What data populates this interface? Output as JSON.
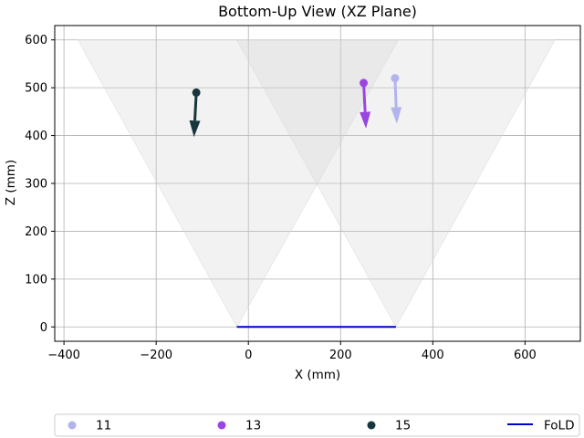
{
  "chart_data": {
    "type": "scatter",
    "title": "Bottom-Up View (XZ Plane)",
    "xlabel": "X (mm)",
    "ylabel": "Z (mm)",
    "xlim": [
      -420,
      720
    ],
    "ylim": [
      -30,
      630
    ],
    "x_ticks": [
      -400,
      -200,
      0,
      200,
      400,
      600
    ],
    "y_ticks": [
      0,
      100,
      200,
      300,
      400,
      500,
      600
    ],
    "grid": true,
    "legend_position": "bottom",
    "fov_cones": [
      {
        "apex": [
          -25,
          0
        ],
        "top_left": [
          -370,
          600
        ],
        "top_right": [
          325,
          600
        ],
        "color": "#d3d3d3"
      },
      {
        "apex": [
          320,
          0
        ],
        "top_left": [
          -25,
          600
        ],
        "top_right": [
          665,
          600
        ],
        "color": "#d3d3d3"
      }
    ],
    "series": [
      {
        "name": "11",
        "color": "#b3b3ee",
        "point": [
          318,
          520
        ],
        "arrow_to": [
          322,
          425
        ]
      },
      {
        "name": "13",
        "color": "#9b45e0",
        "point": [
          250,
          510
        ],
        "arrow_to": [
          255,
          415
        ]
      },
      {
        "name": "15",
        "color": "#17363d",
        "point": [
          -113,
          490
        ],
        "arrow_to": [
          -118,
          397
        ]
      }
    ],
    "fold": {
      "name": "FoLD",
      "color": "#0000cc",
      "x": [
        -25,
        320
      ],
      "y": [
        0,
        0
      ]
    }
  }
}
